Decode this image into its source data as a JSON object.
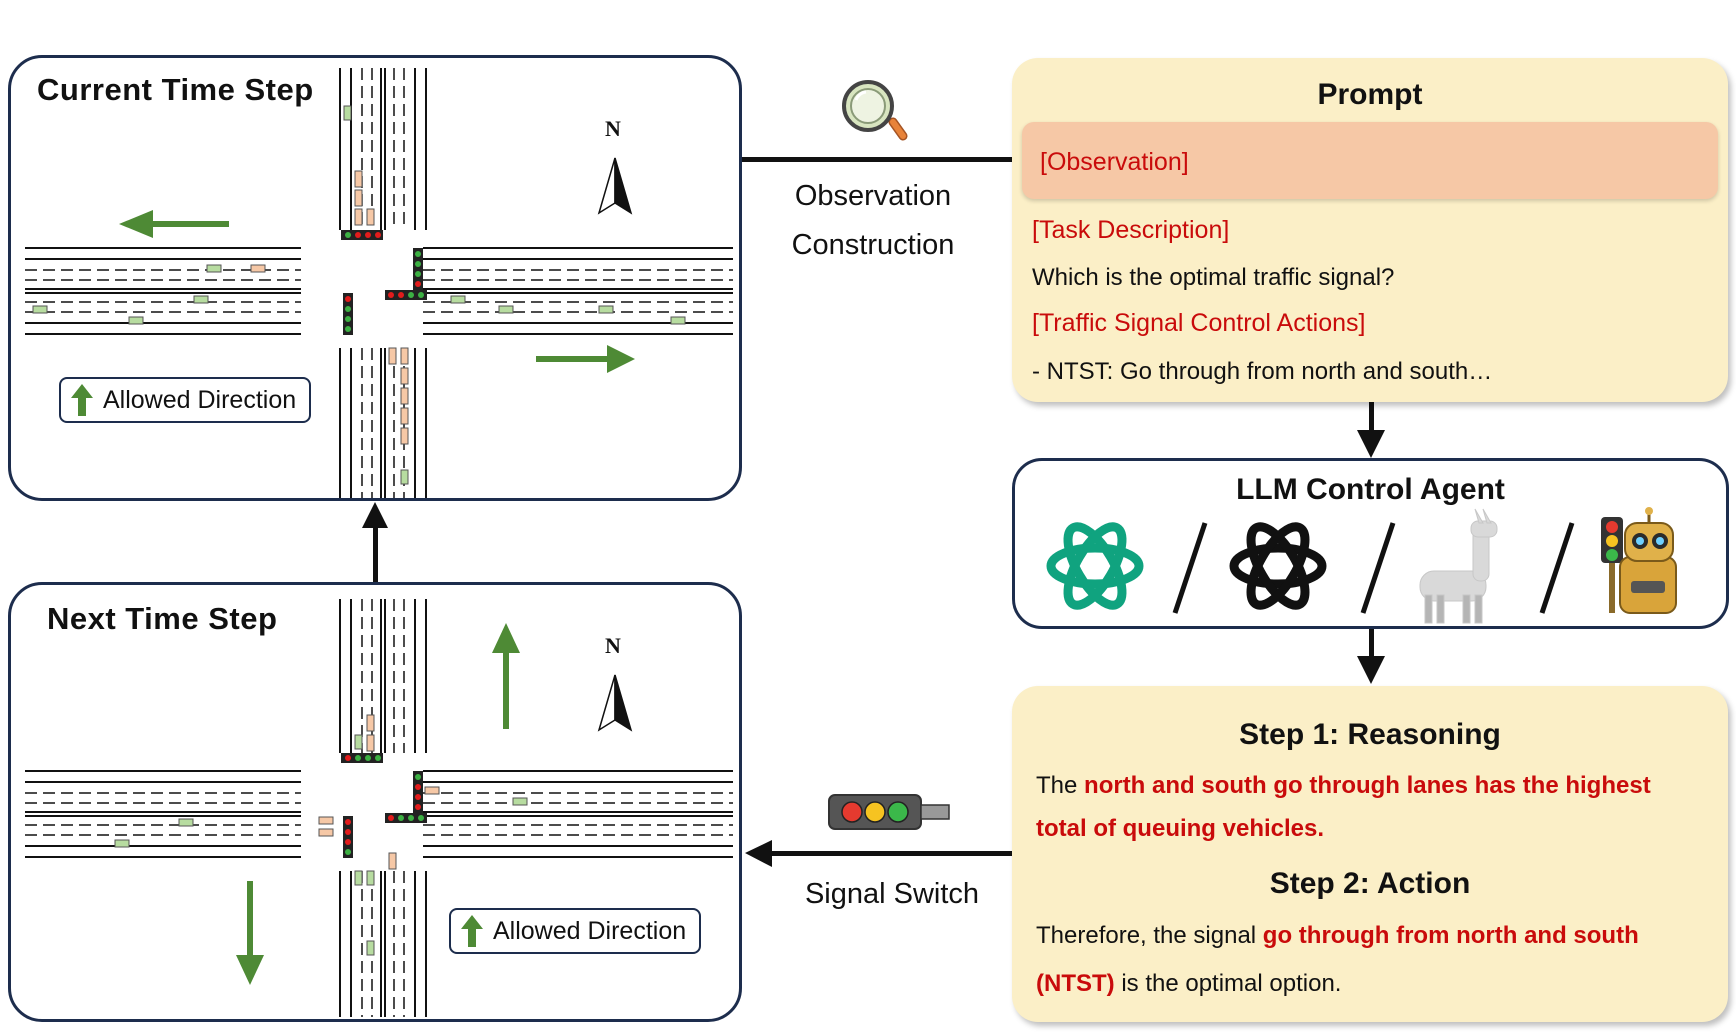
{
  "scenes": {
    "current": {
      "title": "Current Time Step",
      "legend_label": "Allowed Direction",
      "compass": "N"
    },
    "next": {
      "title": "Next Time Step",
      "legend_label": "Allowed Direction",
      "compass": "N"
    }
  },
  "flow": {
    "observation_line1": "Observation",
    "observation_line2": "Construction",
    "signal_switch": "Signal Switch"
  },
  "prompt": {
    "title": "Prompt",
    "observation_tag": "[Observation]",
    "task_tag": "[Task Description]",
    "task_text": "Which is the optimal traffic signal?",
    "actions_tag": "[Traffic Signal Control Actions]",
    "actions_text": "- NTST: Go through from north and south…"
  },
  "agent": {
    "title": "LLM Control Agent",
    "separator": "/"
  },
  "response": {
    "step1_title": "Step 1: Reasoning",
    "step1_prefix": "The",
    "step1_highlight_a": "north and south go through lanes has the highest",
    "step1_highlight_b": "total of queuing vehicles.",
    "step2_title": "Step 2: Action",
    "step2_prefix": "Therefore, the signal",
    "step2_highlight_a": "go through from north and south",
    "step2_highlight_b": "(NTST)",
    "step2_suffix": "is the optimal option."
  },
  "colors": {
    "frame": "#1d2d4d",
    "green_arrow": "#4e8a35",
    "highlight_red": "#c90b0b",
    "panel_yellow": "#fbefc7",
    "observation_band": "#f6c8a6",
    "openai_green": "#10a37f"
  }
}
